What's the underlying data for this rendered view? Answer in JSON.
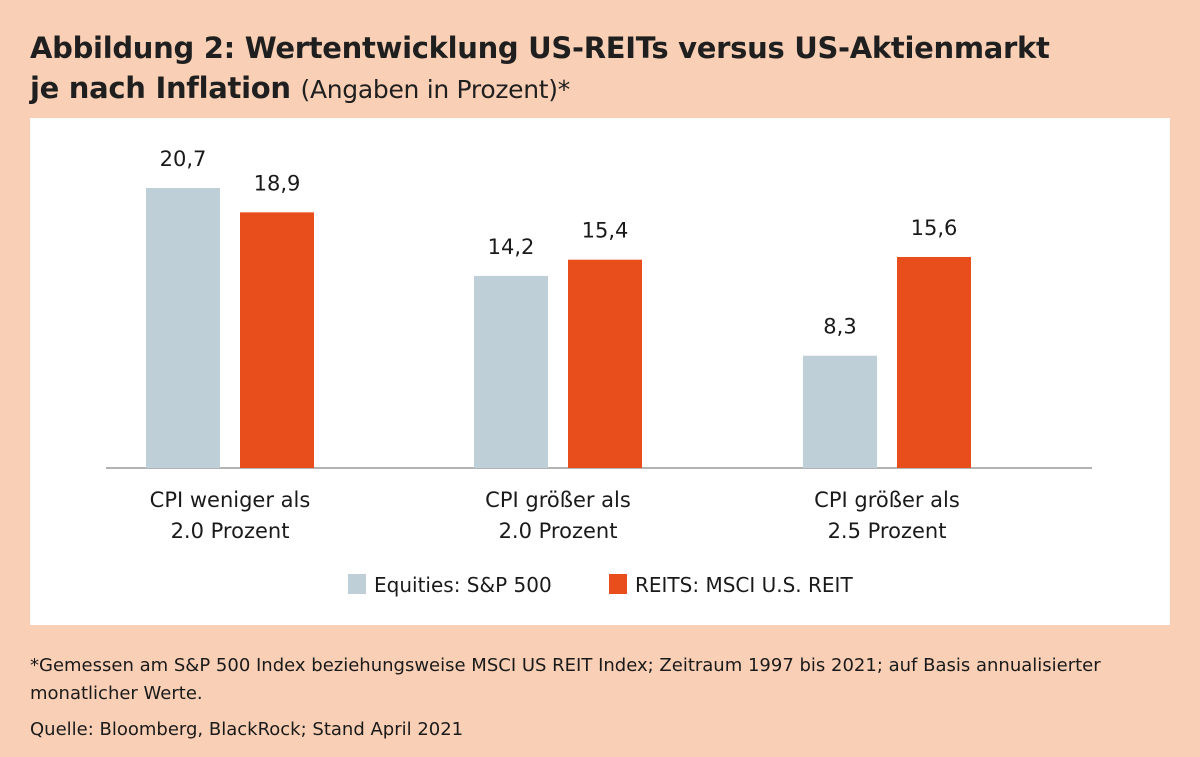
{
  "title": {
    "main_line1": "Abbildung 2: Wertentwicklung US-REITs versus US-Aktienmarkt",
    "main_line2": "je nach Inflation",
    "sub": "(Angaben in Prozent)*"
  },
  "footnote": "*Gemessen am S&P 500 Index beziehungsweise MSCI US REIT Index; Zeitraum 1997 bis 2021; auf Basis annualisierter monatlicher Werte.",
  "source": "Quelle: Bloomberg, BlackRock; Stand April 2021",
  "colors": {
    "equities": "#bfcfd8",
    "reits": "#e84e1b",
    "background": "#f9cfb5",
    "panel": "#ffffff",
    "axis": "#9a9a9a"
  },
  "chart_data": {
    "type": "bar",
    "categories": [
      [
        "CPI weniger als",
        "2.0 Prozent"
      ],
      [
        "CPI größer als",
        "2.0 Prozent"
      ],
      [
        "CPI größer als",
        "2.5 Prozent"
      ]
    ],
    "series": [
      {
        "name": "Equities: S&P 500",
        "values": [
          20.7,
          14.2,
          8.3
        ],
        "labels": [
          "20,7",
          "14,2",
          "8,3"
        ]
      },
      {
        "name": "REITS: MSCI U.S. REIT",
        "values": [
          18.9,
          15.4,
          15.6
        ],
        "labels": [
          "18,9",
          "15,4",
          "15,6"
        ]
      }
    ],
    "ylim": [
      0,
      21
    ],
    "grid": false,
    "legend": "bottom-center"
  }
}
